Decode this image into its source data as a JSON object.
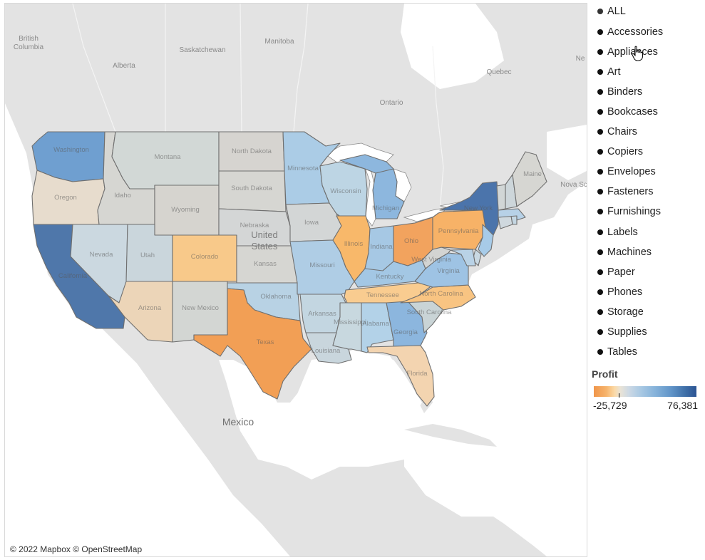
{
  "map": {
    "attribution": "© 2022 Mapbox © OpenStreetMap",
    "place_labels": {
      "british_columbia_1": "British",
      "british_columbia_2": "Columbia",
      "alberta": "Alberta",
      "saskatchewan": "Saskatchewan",
      "manitoba": "Manitoba",
      "ontario": "Ontario",
      "quebec": "Quebec",
      "nova_scotia": "Nova Sc",
      "new_brunswick": "Ne",
      "united_states_1": "United",
      "united_states_2": "States",
      "mexico": "Mexico"
    },
    "state_labels": {
      "washington": "Washington",
      "oregon": "Oregon",
      "california": "California",
      "nevada": "Nevada",
      "idaho": "Idaho",
      "montana": "Montana",
      "wyoming": "Wyoming",
      "utah": "Utah",
      "arizona": "Arizona",
      "colorado": "Colorado",
      "new_mexico": "New Mexico",
      "north_dakota": "North Dakota",
      "south_dakota": "South Dakota",
      "nebraska": "Nebraska",
      "kansas": "Kansas",
      "oklahoma": "Oklahoma",
      "texas": "Texas",
      "minnesota": "Minnesota",
      "iowa": "Iowa",
      "missouri": "Missouri",
      "arkansas": "Arkansas",
      "louisiana": "Louisiana",
      "wisconsin": "Wisconsin",
      "illinois": "Illinois",
      "michigan": "Michigan",
      "indiana": "Indiana",
      "ohio": "Ohio",
      "kentucky": "Kentucky",
      "tennessee": "Tennessee",
      "mississippi": "Mississippi",
      "alabama": "Alabama",
      "georgia": "Georgia",
      "florida": "Florida",
      "south_carolina": "South Carolina",
      "north_carolina": "North Carolina",
      "virginia": "Virginia",
      "west_virginia": "West Virginia",
      "pennsylvania": "Pennsylvania",
      "new_york": "New York",
      "maine": "Maine"
    },
    "state_colors": {
      "washington": "#6f9fd0",
      "oregon": "#e7dccd",
      "california": "#4f77aa",
      "nevada": "#cbd8e0",
      "idaho": "#d6d6d2",
      "montana": "#d2d8d6",
      "wyoming": "#d6d4cf",
      "utah": "#cad6dc",
      "arizona": "#ecd5b8",
      "colorado": "#f8c98a",
      "new_mexico": "#d3d6d3",
      "north_dakota": "#d6d4d0",
      "south_dakota": "#d6d6d2",
      "nebraska": "#d4d6d6",
      "kansas": "#d6d6d2",
      "oklahoma": "#b8d2e4",
      "texas": "#f29f55",
      "minnesota": "#abcce6",
      "iowa": "#d3d6d6",
      "missouri": "#afcde5",
      "arkansas": "#c3d6e1",
      "louisiana": "#c9d6dd",
      "wisconsin": "#bdd5e4",
      "illinois": "#f8b86a",
      "michigan": "#8db7de",
      "indiana": "#a6c8e4",
      "ohio": "#f2a35e",
      "kentucky": "#a3c7e4",
      "tennessee": "#f9cc90",
      "mississippi": "#c8d8df",
      "alabama": "#b3d2e8",
      "georgia": "#8cb6de",
      "florida": "#f3d4b0",
      "south_carolina": "#c9d4d6",
      "north_carolina": "#f8c482",
      "virginia": "#9ec3e4",
      "west_virginia": "#d3d4d2",
      "pennsylvania": "#f7b267",
      "new_york": "#4b74ab",
      "new_jersey": "#a7cbe8",
      "delaware": "#c9d8e2",
      "maryland": "#b9d2e6",
      "connecticut": "#cfd8de",
      "rhode_island": "#c4d6e2",
      "massachusetts": "#b7d1e7",
      "vermont": "#d1d6d6",
      "new_hampshire": "#cdd6da",
      "maine": "#d6d6d2"
    }
  },
  "filter": {
    "items": [
      "ALL",
      "Accessories",
      "Appliances",
      "Art",
      "Binders",
      "Bookcases",
      "Chairs",
      "Copiers",
      "Envelopes",
      "Fasteners",
      "Furnishings",
      "Labels",
      "Machines",
      "Paper",
      "Phones",
      "Storage",
      "Supplies",
      "Tables"
    ]
  },
  "legend": {
    "title": "Profit",
    "min_value": "-25,729",
    "max_value": "76,381"
  }
}
